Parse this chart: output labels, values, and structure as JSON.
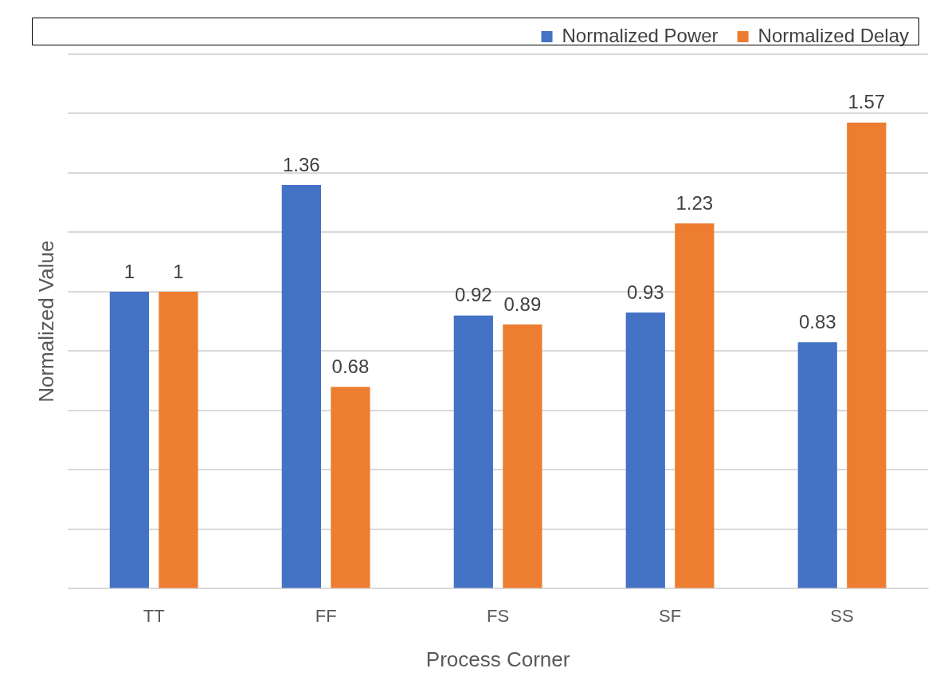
{
  "chart_data": {
    "type": "bar",
    "xlabel": "Process Corner",
    "ylabel": "Normalized Value",
    "categories": [
      "TT",
      "FF",
      "FS",
      "SF",
      "SS"
    ],
    "series": [
      {
        "name": "Normalized Power",
        "color": "#4472c4",
        "values": [
          1,
          1.36,
          0.92,
          0.93,
          0.83
        ]
      },
      {
        "name": "Normalized Delay",
        "color": "#ed7d31",
        "values": [
          1,
          0.68,
          0.89,
          1.23,
          1.57
        ]
      }
    ],
    "ylim": [
      0,
      1.8
    ],
    "yticks": [
      {
        "value": 0,
        "label": null
      },
      {
        "value": 0.2,
        "label": null
      },
      {
        "value": 0.4,
        "label": null
      },
      {
        "value": 0.6,
        "label": null
      },
      {
        "value": 0.8,
        "label": null
      },
      {
        "value": 1,
        "label": null
      },
      {
        "value": 1.2,
        "label": null
      },
      {
        "value": 1.4,
        "label": null
      },
      {
        "value": 1.6,
        "label": null
      },
      {
        "value": 1.8,
        "label": null
      }
    ],
    "grid": "y",
    "legend": "top right",
    "data_labels": true
  }
}
